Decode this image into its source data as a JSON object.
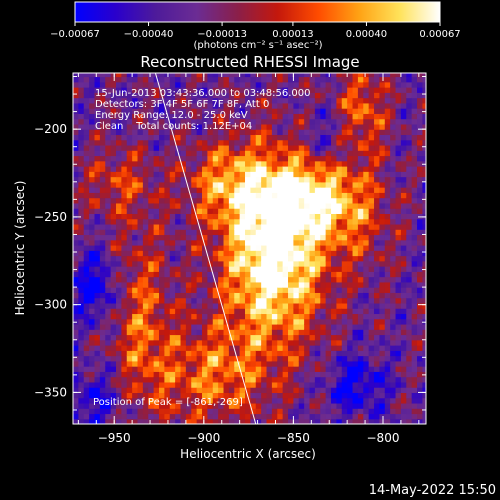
{
  "chart_data": {
    "type": "heatmap",
    "title": "Reconstructed RHESSI Image",
    "xlabel": "Heliocentric X (arcsec)",
    "ylabel": "Heliocentric Y (arcsec)",
    "xlim": [
      -973,
      -776
    ],
    "ylim": [
      -368,
      -168
    ],
    "x_ticks": [
      -950,
      -900,
      -850,
      -800
    ],
    "x_tick_labels": [
      "−950",
      "−900",
      "−850",
      "−800"
    ],
    "y_ticks": [
      -350,
      -300,
      -250,
      -200
    ],
    "y_tick_labels": [
      "−350",
      "−300",
      "−250",
      "−200"
    ],
    "colorbar": {
      "min": -0.00067,
      "max": 0.00067,
      "ticks": [
        -0.00067,
        -0.0004,
        -0.00013,
        0.00013,
        0.0004,
        0.00067
      ],
      "tick_labels": [
        "−0.00067",
        "−0.00040",
        "−0.00013",
        "0.00013",
        "0.00040",
        "0.00067"
      ],
      "unit_label": "(photons cm⁻² s⁻¹ asec⁻²)",
      "colormap": [
        "#0000ff",
        "#2a00cc",
        "#4e1b9a",
        "#6b2c94",
        "#8a1f4a",
        "#c4180c",
        "#ff4c00",
        "#ffa214",
        "#ffe25a",
        "#ffffff"
      ]
    },
    "info_lines": [
      "15-Jun-2013 03:43:36.000 to 03:48:56.000",
      "Detectors: 3F 4F 5F 6F 7F 8F, Att 0",
      "Energy Range: 12.0 - 25.0 keV",
      "Clean    Total counts: 1.12E+04"
    ],
    "peak_label": "Position of Peak = [-861,-269]",
    "peak": [
      -861,
      -269
    ],
    "limb_line": [
      [
        -927,
        -168
      ],
      [
        -871,
        -368
      ]
    ],
    "sources": [
      {
        "x": -861,
        "y": -269,
        "amp": 1.0,
        "sx": 20,
        "sy": 36
      },
      {
        "x": -840,
        "y": -238,
        "amp": 0.55,
        "sx": 18,
        "sy": 14
      },
      {
        "x": -888,
        "y": -230,
        "amp": 0.42,
        "sx": 16,
        "sy": 16
      },
      {
        "x": -812,
        "y": -190,
        "amp": 0.45,
        "sx": 10,
        "sy": 18
      },
      {
        "x": -935,
        "y": -312,
        "amp": 0.4,
        "sx": 12,
        "sy": 40
      },
      {
        "x": -895,
        "y": -340,
        "amp": 0.45,
        "sx": 22,
        "sy": 20
      },
      {
        "x": -948,
        "y": -230,
        "amp": 0.3,
        "sx": 14,
        "sy": 14
      },
      {
        "x": -815,
        "y": -250,
        "amp": 0.32,
        "sx": 14,
        "sy": 20
      }
    ],
    "minima": [
      {
        "x": -960,
        "y": -290,
        "amp": 0.45,
        "sx": 9,
        "sy": 14
      },
      {
        "x": -815,
        "y": -345,
        "amp": 0.4,
        "sx": 12,
        "sy": 12
      },
      {
        "x": -830,
        "y": -205,
        "amp": 0.25,
        "sx": 10,
        "sy": 12
      },
      {
        "x": -960,
        "y": -355,
        "amp": 0.3,
        "sx": 14,
        "sy": 14
      }
    ]
  },
  "timestamp": "14-May-2022 15:50"
}
